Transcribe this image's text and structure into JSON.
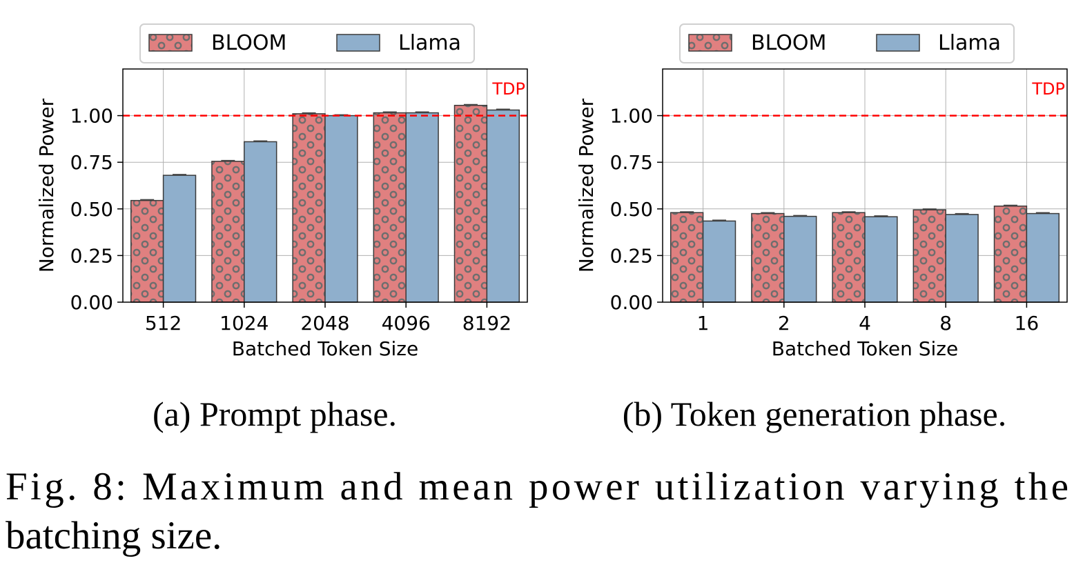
{
  "chart_data": [
    {
      "type": "bar",
      "caption": "(a) Prompt phase.",
      "xlabel": "Batched Token Size",
      "ylabel": "Normalized Power",
      "categories": [
        "512",
        "1024",
        "2048",
        "4096",
        "8192"
      ],
      "series": [
        {
          "name": "BLOOM",
          "values": [
            0.545,
            0.755,
            1.01,
            1.015,
            1.055
          ],
          "color": "#e08080",
          "hatch": "circles"
        },
        {
          "name": "Llama",
          "values": [
            0.68,
            0.86,
            1.0,
            1.015,
            1.03
          ],
          "color": "#8fafcc",
          "hatch": "none"
        }
      ],
      "ylim": [
        0,
        1.25
      ],
      "yticks": [
        "0.00",
        "0.25",
        "0.50",
        "0.75",
        "1.00"
      ],
      "reference_line": {
        "value": 1.0,
        "label": "TDP",
        "color": "#ff0000",
        "style": "dashed"
      },
      "grid": true,
      "legend_position": "top"
    },
    {
      "type": "bar",
      "caption": "(b) Token generation phase.",
      "xlabel": "Batched Token Size",
      "ylabel": "Normalized Power",
      "categories": [
        "1",
        "2",
        "4",
        "8",
        "16"
      ],
      "series": [
        {
          "name": "BLOOM",
          "values": [
            0.48,
            0.475,
            0.48,
            0.495,
            0.515
          ],
          "color": "#e08080",
          "hatch": "circles"
        },
        {
          "name": "Llama",
          "values": [
            0.435,
            0.46,
            0.458,
            0.47,
            0.475
          ],
          "color": "#8fafcc",
          "hatch": "none"
        }
      ],
      "ylim": [
        0,
        1.25
      ],
      "yticks": [
        "0.00",
        "0.25",
        "0.50",
        "0.75",
        "1.00"
      ],
      "reference_line": {
        "value": 1.0,
        "label": "TDP",
        "color": "#ff0000",
        "style": "dashed"
      },
      "grid": true,
      "legend_position": "top"
    }
  ],
  "figure_caption": {
    "line1": "Fig. 8: Maximum and mean power utilization varying the",
    "line2": "batching size."
  }
}
